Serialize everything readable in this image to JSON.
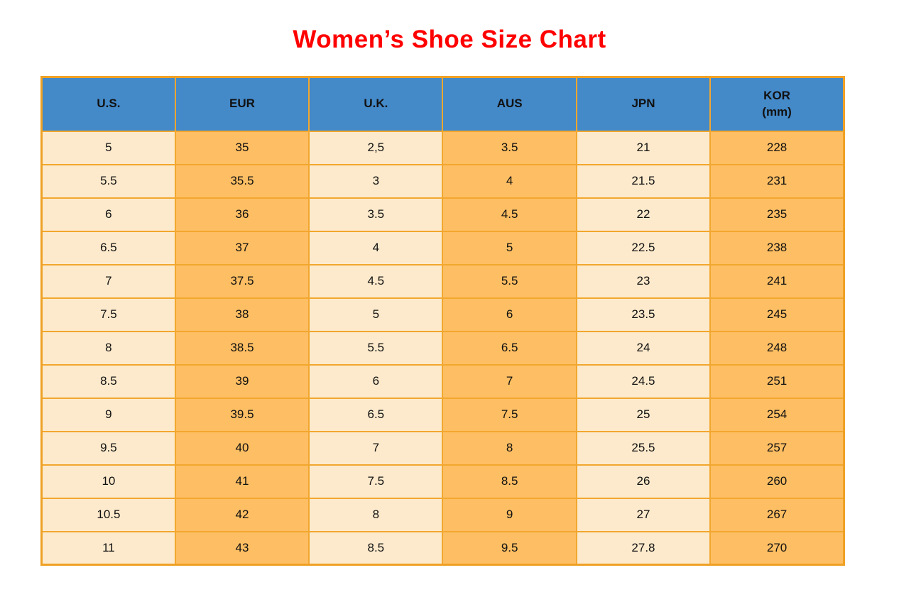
{
  "title": "Women’s Shoe Size Chart",
  "table": {
    "columns": [
      {
        "id": "us",
        "label": "U.S."
      },
      {
        "id": "eur",
        "label": "EUR"
      },
      {
        "id": "uk",
        "label": "U.K."
      },
      {
        "id": "aus",
        "label": "AUS"
      },
      {
        "id": "jpn",
        "label": "JPN"
      },
      {
        "id": "kor",
        "label": "KOR",
        "sublabel": "(mm)"
      }
    ]
  },
  "chart_data": {
    "type": "table",
    "title": "Women’s Shoe Size Chart",
    "columns": [
      "U.S.",
      "EUR",
      "U.K.",
      "AUS",
      "JPN",
      "KOR (mm)"
    ],
    "rows": [
      [
        "5",
        "35",
        "2,5",
        "3.5",
        "21",
        "228"
      ],
      [
        "5.5",
        "35.5",
        "3",
        "4",
        "21.5",
        "231"
      ],
      [
        "6",
        "36",
        "3.5",
        "4.5",
        "22",
        "235"
      ],
      [
        "6.5",
        "37",
        "4",
        "5",
        "22.5",
        "238"
      ],
      [
        "7",
        "37.5",
        "4.5",
        "5.5",
        "23",
        "241"
      ],
      [
        "7.5",
        "38",
        "5",
        "6",
        "23.5",
        "245"
      ],
      [
        "8",
        "38.5",
        "5.5",
        "6.5",
        "24",
        "248"
      ],
      [
        "8.5",
        "39",
        "6",
        "7",
        "24.5",
        "251"
      ],
      [
        "9",
        "39.5",
        "6.5",
        "7.5",
        "25",
        "254"
      ],
      [
        "9.5",
        "40",
        "7",
        "8",
        "25.5",
        "257"
      ],
      [
        "10",
        "41",
        "7.5",
        "8.5",
        "26",
        "260"
      ],
      [
        "10.5",
        "42",
        "8",
        "9",
        "27",
        "267"
      ],
      [
        "11",
        "43",
        "8.5",
        "9.5",
        "27.8",
        "270"
      ]
    ]
  },
  "colors": {
    "title_red": "#FF0000",
    "header_blue": "#4489C8",
    "cell_cream": "#FDEACC",
    "cell_orange": "#FEBE63",
    "border_orange": "#F2A72E",
    "border_outer": "#EFA125",
    "text_dark": "#111111"
  }
}
